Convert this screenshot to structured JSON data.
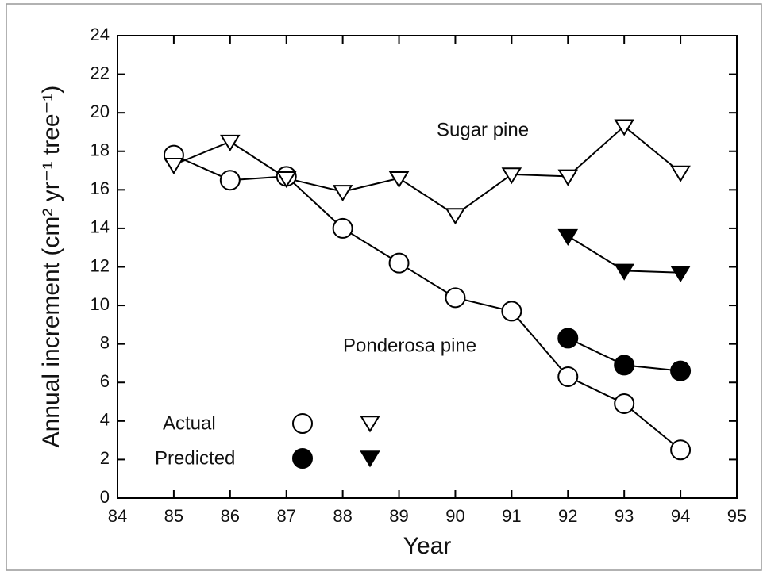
{
  "chart_data": {
    "type": "line",
    "xlabel": "Year",
    "ylabel": "Annual increment (cm² yr⁻¹ tree⁻¹)",
    "xlim": [
      84,
      95
    ],
    "xticks": [
      84,
      85,
      86,
      87,
      88,
      89,
      90,
      91,
      92,
      93,
      94,
      95
    ],
    "ylim": [
      0,
      24
    ],
    "yticks": [
      0,
      2,
      4,
      6,
      8,
      10,
      12,
      14,
      16,
      18,
      20,
      22,
      24
    ],
    "annotations": [
      "Sugar pine",
      "Ponderosa pine"
    ],
    "legend": [
      {
        "label": "Actual",
        "filled": false
      },
      {
        "label": "Predicted",
        "filled": true
      }
    ],
    "series": [
      {
        "marker": "circle",
        "filled": false,
        "x": [
          85,
          86,
          87,
          88,
          89,
          90,
          91,
          92,
          93,
          94
        ],
        "values": [
          17.8,
          16.5,
          16.7,
          14.0,
          12.2,
          10.4,
          9.7,
          6.3,
          4.9,
          2.5
        ]
      },
      {
        "marker": "triangle",
        "filled": false,
        "x": [
          85,
          86,
          87,
          88,
          89,
          90,
          91,
          92,
          93,
          94
        ],
        "values": [
          17.3,
          18.5,
          16.6,
          15.9,
          16.6,
          14.7,
          16.8,
          16.7,
          19.3,
          16.9
        ]
      },
      {
        "marker": "circle",
        "filled": true,
        "x": [
          92,
          93,
          94
        ],
        "values": [
          8.3,
          6.9,
          6.6
        ]
      },
      {
        "marker": "triangle",
        "filled": true,
        "x": [
          92,
          93,
          94
        ],
        "values": [
          13.6,
          11.8,
          11.7
        ]
      }
    ]
  }
}
